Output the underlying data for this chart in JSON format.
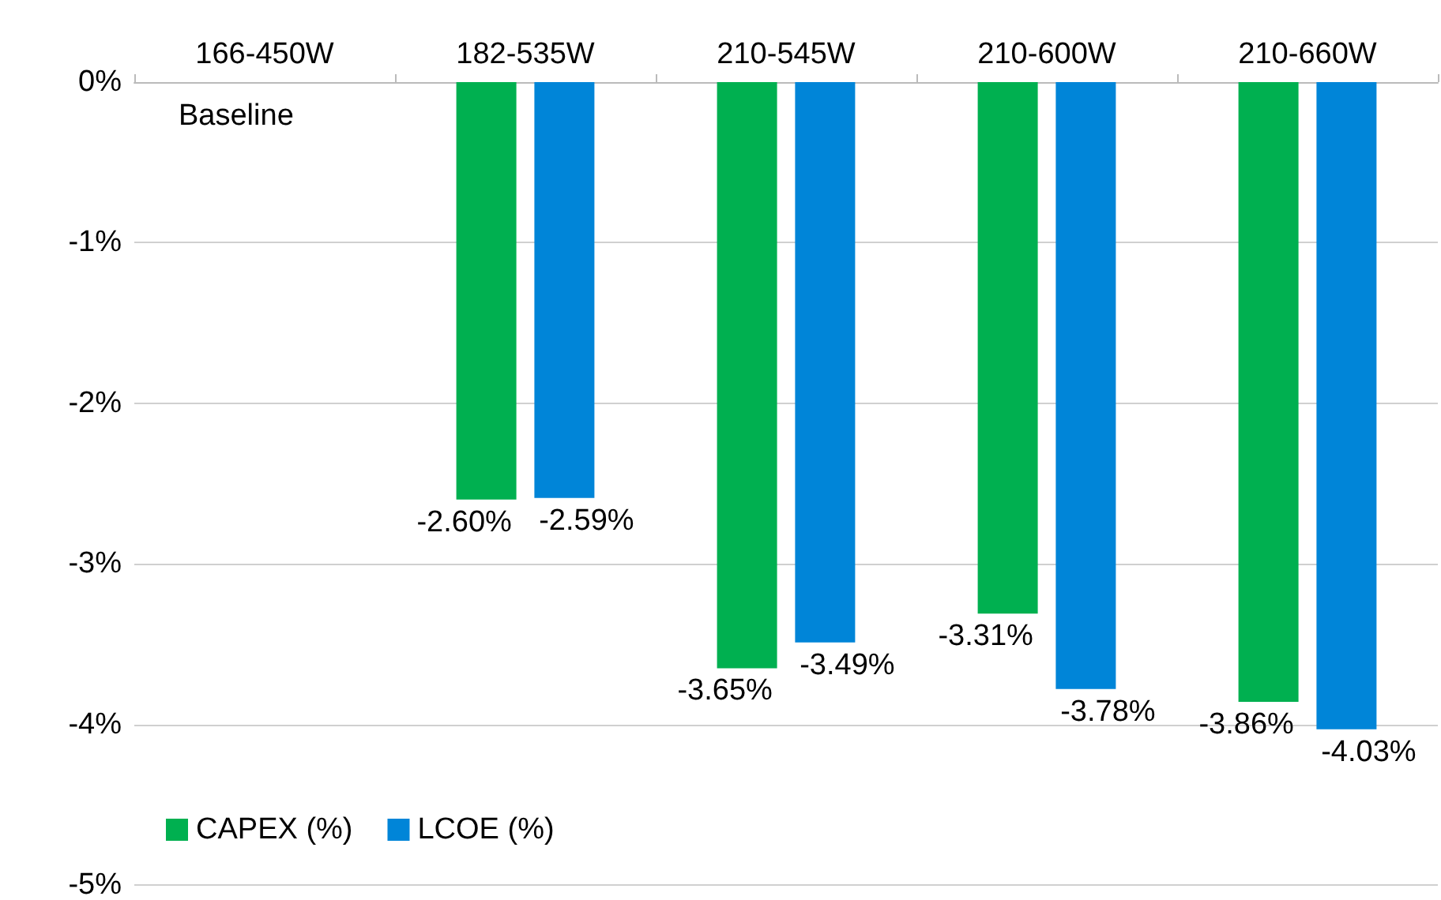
{
  "chart_data": {
    "type": "bar",
    "categories": [
      "166-450W",
      "182-535W",
      "210-545W",
      "210-600W",
      "210-660W"
    ],
    "series": [
      {
        "name": "CAPEX (%)",
        "color": "#00b050",
        "values": [
          null,
          -2.6,
          -3.65,
          -3.31,
          -3.86
        ],
        "value_labels": [
          null,
          "-2.60%",
          "-3.65%",
          "-3.31%",
          "-3.86%"
        ]
      },
      {
        "name": "LCOE (%)",
        "color": "#0085d8",
        "values": [
          null,
          -2.59,
          -3.49,
          -3.78,
          -4.03
        ],
        "value_labels": [
          null,
          "-2.59%",
          "-3.49%",
          "-3.78%",
          "-4.03%"
        ]
      }
    ],
    "ylim": [
      -5,
      0
    ],
    "yticks": [
      {
        "value": 0,
        "label": "0%"
      },
      {
        "value": -1,
        "label": "-1%"
      },
      {
        "value": -2,
        "label": "-2%"
      },
      {
        "value": -3,
        "label": "-3%"
      },
      {
        "value": -4,
        "label": "-4%"
      },
      {
        "value": -5,
        "label": "-5%"
      }
    ],
    "annotations": [
      "Baseline"
    ],
    "grid": "y",
    "legend": "bottom left"
  }
}
